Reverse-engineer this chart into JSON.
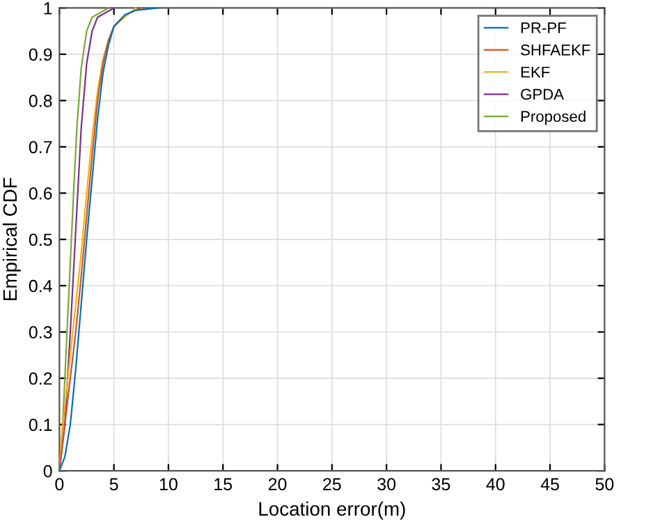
{
  "chart_data": {
    "type": "line",
    "xlabel": "Location error(m)",
    "ylabel": "Empirical CDF",
    "xlim": [
      0,
      50
    ],
    "xticks": [
      0,
      5,
      10,
      15,
      20,
      25,
      30,
      35,
      40,
      45,
      50
    ],
    "ylim": [
      0,
      1
    ],
    "yticks": [
      0,
      0.1,
      0.2,
      0.3,
      0.4,
      0.5,
      0.6,
      0.7,
      0.8,
      0.9,
      1
    ],
    "grid": true,
    "legend": "top right",
    "line_style": "solid",
    "marker": "none",
    "series": [
      {
        "name": "PR-PF",
        "color": "#0072bd",
        "x": [
          0,
          0.5,
          1,
          1.5,
          2,
          2.5,
          3,
          3.5,
          4,
          4.5,
          5,
          6,
          7,
          9
        ],
        "values": [
          0,
          0.03,
          0.1,
          0.22,
          0.36,
          0.5,
          0.63,
          0.76,
          0.86,
          0.92,
          0.96,
          0.985,
          0.995,
          1
        ]
      },
      {
        "name": "SHFAEKF",
        "color": "#d95319",
        "x": [
          0,
          0.5,
          1,
          1.5,
          2,
          2.5,
          3,
          3.5,
          4,
          4.5,
          5,
          6,
          7.5
        ],
        "values": [
          0,
          0.1,
          0.2,
          0.3,
          0.42,
          0.55,
          0.68,
          0.8,
          0.88,
          0.93,
          0.96,
          0.985,
          1
        ]
      },
      {
        "name": "EKF",
        "color": "#edb120",
        "x": [
          0,
          0.2,
          0.5,
          1,
          1.5,
          2,
          2.5,
          3,
          3.5,
          4,
          4.5,
          5,
          7
        ],
        "values": [
          0,
          0.07,
          0.14,
          0.25,
          0.36,
          0.47,
          0.6,
          0.72,
          0.82,
          0.89,
          0.93,
          0.96,
          1
        ]
      },
      {
        "name": "GPDA",
        "color": "#7e2f8e",
        "x": [
          0,
          0.5,
          1,
          1.5,
          2,
          2.5,
          3,
          3.5,
          5
        ],
        "values": [
          0,
          0.1,
          0.3,
          0.52,
          0.74,
          0.88,
          0.95,
          0.98,
          1
        ]
      },
      {
        "name": "Proposed",
        "color": "#77ac30",
        "x": [
          0,
          0.3,
          0.6,
          1,
          1.3,
          1.6,
          2,
          2.5,
          3,
          4.5
        ],
        "values": [
          0,
          0.1,
          0.25,
          0.45,
          0.6,
          0.74,
          0.87,
          0.95,
          0.98,
          1
        ]
      }
    ]
  }
}
